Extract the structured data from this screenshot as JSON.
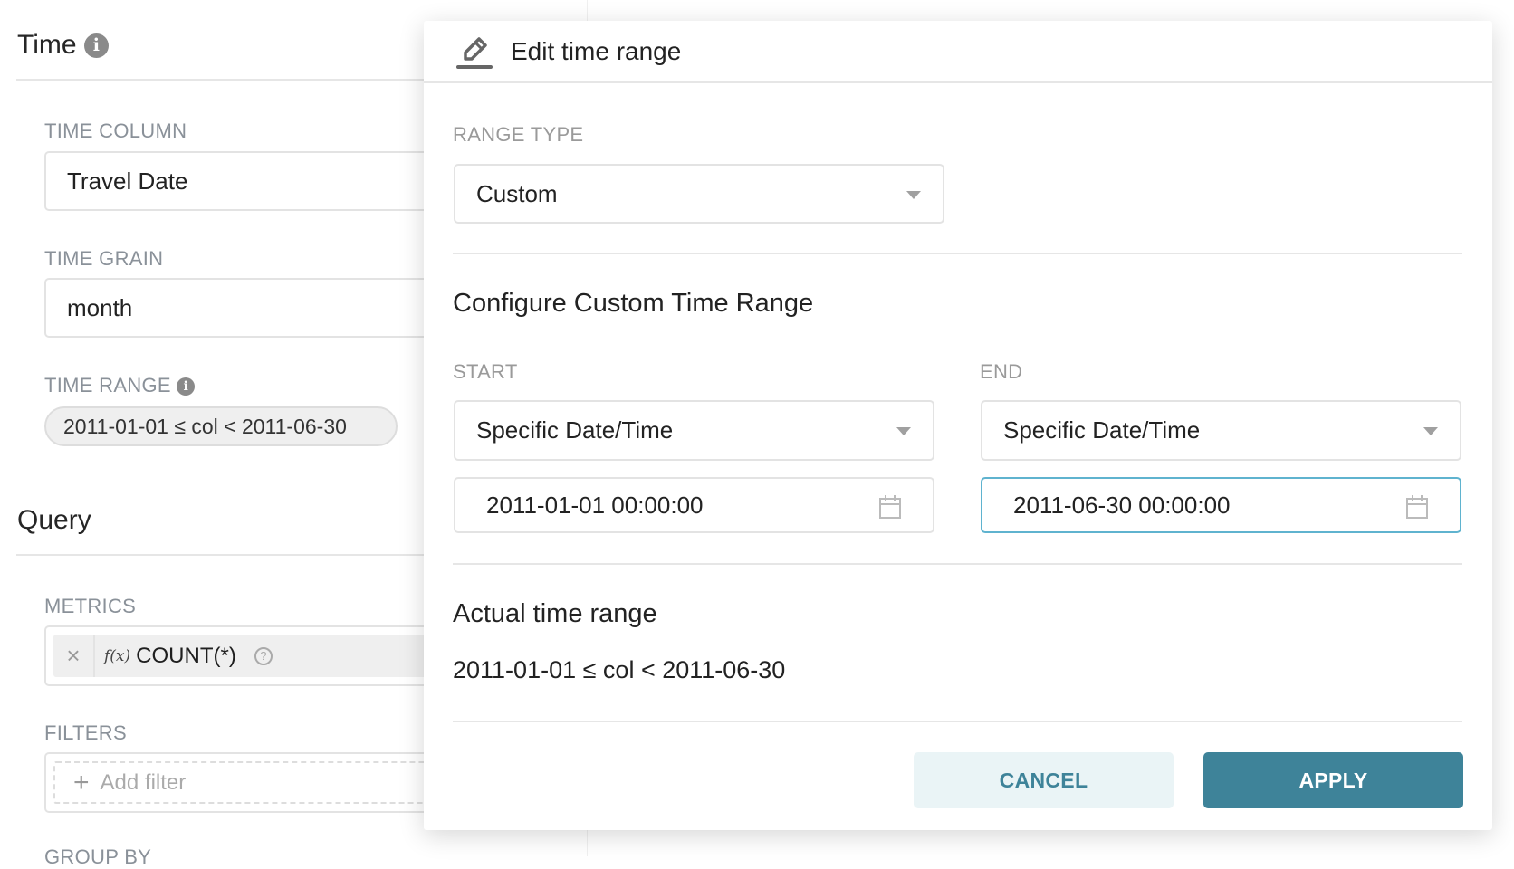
{
  "sidebar": {
    "time_title": "Time",
    "time_column": {
      "label": "TIME COLUMN",
      "value": "Travel Date"
    },
    "time_grain": {
      "label": "TIME GRAIN",
      "value": "month"
    },
    "time_range": {
      "label": "TIME RANGE",
      "value": "2011-01-01 ≤ col < 2011-06-30"
    },
    "query_title": "Query",
    "metrics": {
      "label": "METRICS",
      "fx": "f(x)",
      "value": "COUNT(*)"
    },
    "filters": {
      "label": "FILTERS",
      "placeholder": "Add filter"
    },
    "group_by": {
      "label": "GROUP BY"
    }
  },
  "modal": {
    "title": "Edit time range",
    "range_type": {
      "label": "RANGE TYPE",
      "value": "Custom"
    },
    "configure_title": "Configure Custom Time Range",
    "start": {
      "label": "START",
      "mode": "Specific Date/Time",
      "value": "2011-01-01 00:00:00"
    },
    "end": {
      "label": "END",
      "mode": "Specific Date/Time",
      "value": "2011-06-30 00:00:00"
    },
    "actual_title": "Actual time range",
    "actual_value": "2011-01-01 ≤ col < 2011-06-30",
    "cancel": "CANCEL",
    "apply": "APPLY"
  },
  "colors": {
    "primary": "#3e8399",
    "cancel_bg": "#eaf4f6",
    "focus_border": "#5fb3cf"
  }
}
